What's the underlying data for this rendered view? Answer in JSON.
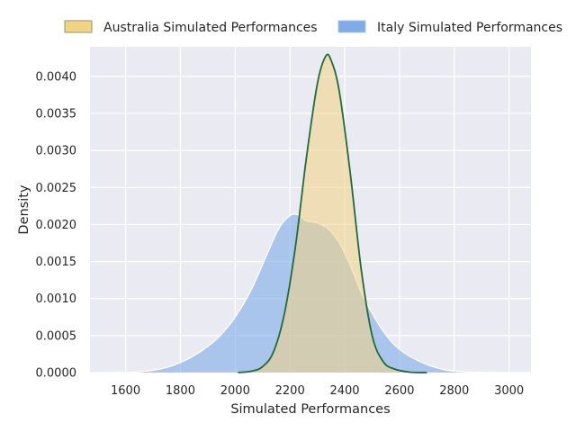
{
  "chart_data": {
    "type": "area",
    "title": "",
    "xlabel": "Simulated Performances",
    "ylabel": "Density",
    "xlim": [
      1470,
      3080
    ],
    "ylim": [
      0,
      0.0044
    ],
    "x_ticks": [
      1600,
      1800,
      2000,
      2200,
      2400,
      2600,
      2800,
      3000
    ],
    "y_ticks": [
      0.0,
      0.0005,
      0.001,
      0.0015,
      0.002,
      0.0025,
      0.003,
      0.0035,
      0.004
    ],
    "y_tick_labels": [
      "0.0000",
      "0.0005",
      "0.0010",
      "0.0015",
      "0.0020",
      "0.0025",
      "0.0030",
      "0.0035",
      "0.0040"
    ],
    "grid": true,
    "legend": {
      "placement": "top, outside plot",
      "columns": 2
    },
    "series": [
      {
        "name": "Italy Simulated Performances",
        "fill": "#7fabe6",
        "edge": "#ffffff",
        "points": [
          [
            1540,
            0.0
          ],
          [
            1620,
            5e-06
          ],
          [
            1700,
            3e-05
          ],
          [
            1760,
            8e-05
          ],
          [
            1820,
            0.00017
          ],
          [
            1880,
            0.0003
          ],
          [
            1940,
            0.00048
          ],
          [
            2000,
            0.00075
          ],
          [
            2060,
            0.00113
          ],
          [
            2120,
            0.00163
          ],
          [
            2160,
            0.00195
          ],
          [
            2200,
            0.00212
          ],
          [
            2230,
            0.00213
          ],
          [
            2260,
            0.00205
          ],
          [
            2300,
            0.00202
          ],
          [
            2340,
            0.00194
          ],
          [
            2380,
            0.00175
          ],
          [
            2420,
            0.00145
          ],
          [
            2460,
            0.00108
          ],
          [
            2500,
            0.0008
          ],
          [
            2540,
            0.00056
          ],
          [
            2580,
            0.00038
          ],
          [
            2620,
            0.00026
          ],
          [
            2680,
            0.00014
          ],
          [
            2740,
            6e-05
          ],
          [
            2800,
            2e-05
          ],
          [
            2880,
            5e-06
          ],
          [
            2970,
            0.0
          ]
        ]
      },
      {
        "name": "Australia Simulated Performances",
        "fill": "#f2d383",
        "edge": "#1f6b3a",
        "points": [
          [
            2010,
            0.0
          ],
          [
            2060,
            2e-05
          ],
          [
            2100,
            8e-05
          ],
          [
            2140,
            0.00028
          ],
          [
            2180,
            0.0008
          ],
          [
            2220,
            0.0017
          ],
          [
            2260,
            0.0029
          ],
          [
            2300,
            0.0039
          ],
          [
            2330,
            0.00427
          ],
          [
            2350,
            0.00422
          ],
          [
            2380,
            0.0038
          ],
          [
            2420,
            0.0027
          ],
          [
            2460,
            0.0014
          ],
          [
            2500,
            0.0005
          ],
          [
            2540,
            0.00015
          ],
          [
            2580,
            5e-05
          ],
          [
            2640,
            5e-06
          ],
          [
            2700,
            0.0
          ]
        ]
      }
    ]
  },
  "colors": {
    "plot_background": "#eaeaf2",
    "grid": "#ffffff",
    "overlap_note": "blend of semi-transparent fills"
  }
}
